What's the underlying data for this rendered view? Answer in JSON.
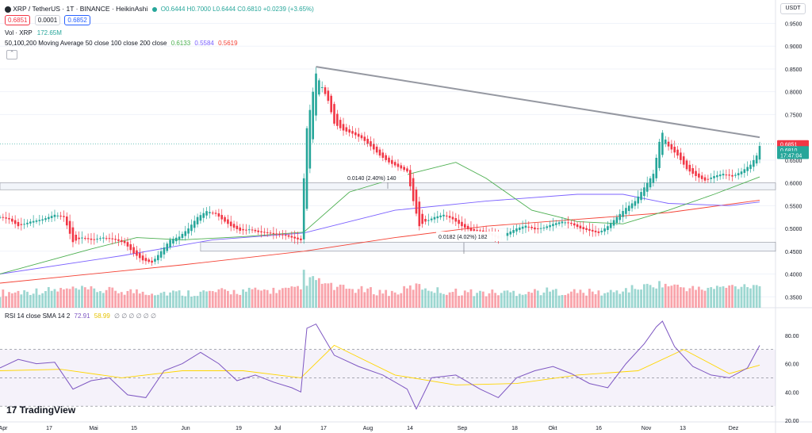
{
  "header": {
    "symbol": "XRP / TetherUS · 1T · BINANCE · HeikinAshi",
    "ohlc": "O0.6444 H0.7000 L0.6444 C0.6810 +0.0239 (+3.65%)",
    "bid": "0.6851",
    "spread": "0.0001",
    "ask": "0.6852",
    "volume_label": "Vol · XRP",
    "volume_value": "172.65M",
    "ma_label": "50,100,200 Moving Average 50 close 100 close 200 close",
    "ma50": "0.6133",
    "ma100": "0.5584",
    "ma200": "0.5619",
    "currency_button": "USDT",
    "collapse_icon": "chevron-up-icon"
  },
  "price_axis": [
    "0.9500",
    "0.9000",
    "0.8500",
    "0.8000",
    "0.7500",
    "0.6500",
    "0.6000",
    "0.5500",
    "0.5000",
    "0.4500",
    "0.4000",
    "0.3500"
  ],
  "price_tags": {
    "last": "0.6851",
    "close": "0.6810",
    "countdown": "17:47:04"
  },
  "rsi": {
    "label": "RSI 14 close SMA 14 2",
    "value": "72.91",
    "sma_value": "58.99",
    "extra": "∅ ∅ ∅ ∅ ∅ ∅",
    "axis": [
      "80.00",
      "60.00",
      "40.00",
      "20.00"
    ]
  },
  "time_axis": [
    "Apr",
    "17",
    "Mai",
    "15",
    "Jun",
    "19",
    "Jul",
    "17",
    "Aug",
    "14",
    "Sep",
    "18",
    "Okt",
    "16",
    "Nov",
    "13",
    "Dez"
  ],
  "annotations": {
    "measure1": "0.0140 (2.40%) 140",
    "measure2": "0.0182 (4.02%) 182"
  },
  "logo": "TradingView",
  "colors": {
    "up": "#26a69a",
    "down": "#f23645",
    "ma50": "#4caf50",
    "ma100": "#7b61ff",
    "ma200": "#f44336",
    "rsi": "#7e57c2",
    "rsi_sma": "#ffd600",
    "trendline": "#9598a1"
  },
  "chart_data": {
    "type": "candlestick",
    "candle_style": "HeikinAshi",
    "interval": "1 day",
    "y_range": [
      0.34,
      0.97
    ],
    "x_labels": [
      "Apr",
      "17",
      "Mai",
      "15",
      "Jun",
      "19",
      "Jul",
      "17",
      "Aug",
      "14",
      "Sep",
      "18",
      "Okt",
      "16",
      "Nov",
      "13",
      "Dez"
    ],
    "close_path": [
      [
        0,
        0.525
      ],
      [
        3,
        0.52
      ],
      [
        6,
        0.505
      ],
      [
        10,
        0.515
      ],
      [
        14,
        0.52
      ],
      [
        18,
        0.53
      ],
      [
        21,
        0.525
      ],
      [
        24,
        0.47
      ],
      [
        27,
        0.48
      ],
      [
        30,
        0.475
      ],
      [
        34,
        0.48
      ],
      [
        38,
        0.475
      ],
      [
        41,
        0.468
      ],
      [
        44,
        0.445
      ],
      [
        47,
        0.43
      ],
      [
        50,
        0.425
      ],
      [
        53,
        0.45
      ],
      [
        56,
        0.475
      ],
      [
        59,
        0.482
      ],
      [
        62,
        0.5
      ],
      [
        65,
        0.525
      ],
      [
        68,
        0.538
      ],
      [
        71,
        0.532
      ],
      [
        73,
        0.52
      ],
      [
        76,
        0.505
      ],
      [
        79,
        0.495
      ],
      [
        82,
        0.498
      ],
      [
        85,
        0.492
      ],
      [
        88,
        0.49
      ],
      [
        91,
        0.487
      ],
      [
        94,
        0.484
      ],
      [
        97,
        0.478
      ],
      [
        99,
        0.474
      ],
      [
        100,
        0.61
      ],
      [
        101,
        0.72
      ],
      [
        102,
        0.76
      ],
      [
        103,
        0.8
      ],
      [
        104,
        0.84
      ],
      [
        106,
        0.81
      ],
      [
        108,
        0.78
      ],
      [
        110,
        0.73
      ],
      [
        113,
        0.715
      ],
      [
        116,
        0.708
      ],
      [
        119,
        0.698
      ],
      [
        122,
        0.68
      ],
      [
        125,
        0.66
      ],
      [
        128,
        0.645
      ],
      [
        131,
        0.635
      ],
      [
        134,
        0.625
      ],
      [
        136,
        0.56
      ],
      [
        138,
        0.505
      ],
      [
        140,
        0.515
      ],
      [
        143,
        0.525
      ],
      [
        146,
        0.53
      ],
      [
        149,
        0.52
      ],
      [
        152,
        0.505
      ],
      [
        155,
        0.495
      ],
      [
        158,
        0.495
      ],
      [
        161,
        0.487
      ],
      [
        164,
        0.478
      ],
      [
        167,
        0.49
      ],
      [
        170,
        0.5
      ],
      [
        173,
        0.506
      ],
      [
        176,
        0.498
      ],
      [
        179,
        0.502
      ],
      [
        182,
        0.51
      ],
      [
        185,
        0.515
      ],
      [
        188,
        0.51
      ],
      [
        191,
        0.5
      ],
      [
        194,
        0.495
      ],
      [
        197,
        0.49
      ],
      [
        200,
        0.505
      ],
      [
        203,
        0.525
      ],
      [
        206,
        0.545
      ],
      [
        209,
        0.56
      ],
      [
        212,
        0.59
      ],
      [
        215,
        0.62
      ],
      [
        217,
        0.69
      ],
      [
        218,
        0.71
      ],
      [
        220,
        0.68
      ],
      [
        223,
        0.66
      ],
      [
        226,
        0.63
      ],
      [
        229,
        0.615
      ],
      [
        232,
        0.605
      ],
      [
        235,
        0.615
      ],
      [
        238,
        0.62
      ],
      [
        241,
        0.614
      ],
      [
        244,
        0.625
      ],
      [
        247,
        0.64
      ],
      [
        249,
        0.66
      ],
      [
        250,
        0.681
      ]
    ],
    "moving_averages": {
      "ma50": [
        [
          0,
          0.4
        ],
        [
          30,
          0.455
        ],
        [
          45,
          0.48
        ],
        [
          60,
          0.475
        ],
        [
          80,
          0.482
        ],
        [
          100,
          0.492
        ],
        [
          115,
          0.58
        ],
        [
          135,
          0.62
        ],
        [
          150,
          0.645
        ],
        [
          160,
          0.61
        ],
        [
          175,
          0.54
        ],
        [
          190,
          0.515
        ],
        [
          205,
          0.51
        ],
        [
          220,
          0.54
        ],
        [
          235,
          0.575
        ],
        [
          250,
          0.613
        ]
      ],
      "ma100": [
        [
          0,
          0.4
        ],
        [
          40,
          0.44
        ],
        [
          70,
          0.475
        ],
        [
          100,
          0.49
        ],
        [
          130,
          0.54
        ],
        [
          160,
          0.56
        ],
        [
          190,
          0.575
        ],
        [
          205,
          0.575
        ],
        [
          220,
          0.555
        ],
        [
          240,
          0.55
        ],
        [
          250,
          0.558
        ]
      ],
      "ma200": [
        [
          0,
          0.38
        ],
        [
          60,
          0.42
        ],
        [
          100,
          0.45
        ],
        [
          130,
          0.48
        ],
        [
          160,
          0.505
        ],
        [
          190,
          0.52
        ],
        [
          220,
          0.535
        ],
        [
          250,
          0.562
        ]
      ]
    },
    "trendline": [
      [
        104,
        0.855
      ],
      [
        250,
        0.7
      ]
    ],
    "support_zones": [
      [
        0.585,
        0.6
      ],
      [
        0.45,
        0.47
      ]
    ],
    "volume": [
      [
        0,
        0.3
      ],
      [
        10,
        0.35
      ],
      [
        24,
        0.4
      ],
      [
        40,
        0.35
      ],
      [
        60,
        0.3
      ],
      [
        80,
        0.35
      ],
      [
        99,
        0.4
      ],
      [
        100,
        0.9
      ],
      [
        101,
        0.6
      ],
      [
        103,
        0.7
      ],
      [
        110,
        0.45
      ],
      [
        130,
        0.3
      ],
      [
        137,
        0.5
      ],
      [
        145,
        0.35
      ],
      [
        160,
        0.3
      ],
      [
        180,
        0.35
      ],
      [
        200,
        0.3
      ],
      [
        217,
        0.55
      ],
      [
        230,
        0.4
      ],
      [
        250,
        0.55
      ]
    ],
    "rsi": {
      "y_range": [
        20,
        90
      ],
      "values": [
        [
          0,
          57
        ],
        [
          6,
          63
        ],
        [
          12,
          60
        ],
        [
          18,
          61
        ],
        [
          24,
          42
        ],
        [
          30,
          48
        ],
        [
          36,
          50
        ],
        [
          42,
          38
        ],
        [
          48,
          36
        ],
        [
          54,
          55
        ],
        [
          60,
          60
        ],
        [
          66,
          68
        ],
        [
          72,
          60
        ],
        [
          78,
          48
        ],
        [
          84,
          52
        ],
        [
          90,
          47
        ],
        [
          96,
          43
        ],
        [
          99,
          40
        ],
        [
          101,
          85
        ],
        [
          104,
          88
        ],
        [
          110,
          66
        ],
        [
          118,
          58
        ],
        [
          126,
          52
        ],
        [
          134,
          42
        ],
        [
          137,
          28
        ],
        [
          142,
          50
        ],
        [
          150,
          52
        ],
        [
          158,
          42
        ],
        [
          164,
          36
        ],
        [
          170,
          50
        ],
        [
          176,
          55
        ],
        [
          182,
          58
        ],
        [
          188,
          53
        ],
        [
          194,
          46
        ],
        [
          200,
          43
        ],
        [
          206,
          60
        ],
        [
          212,
          74
        ],
        [
          216,
          86
        ],
        [
          218,
          90
        ],
        [
          222,
          72
        ],
        [
          228,
          58
        ],
        [
          234,
          52
        ],
        [
          240,
          50
        ],
        [
          246,
          57
        ],
        [
          250,
          72.91
        ]
      ],
      "sma": [
        [
          0,
          55
        ],
        [
          20,
          56
        ],
        [
          40,
          50
        ],
        [
          60,
          55
        ],
        [
          80,
          55
        ],
        [
          99,
          50
        ],
        [
          110,
          73
        ],
        [
          130,
          52
        ],
        [
          150,
          45
        ],
        [
          170,
          46
        ],
        [
          190,
          52
        ],
        [
          210,
          55
        ],
        [
          225,
          70
        ],
        [
          240,
          53
        ],
        [
          250,
          58.99
        ]
      ],
      "overbought": 70,
      "oversold": 30
    }
  }
}
